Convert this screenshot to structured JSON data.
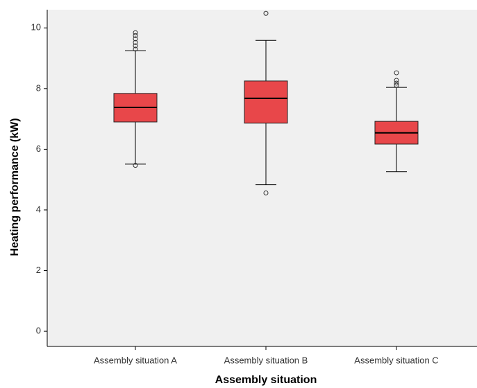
{
  "chart_data": {
    "type": "box",
    "x_label": "Assembly situation",
    "y_label": "Heating performance (kW)",
    "categories": [
      "Assembly situation A",
      "Assembly situation B",
      "Assembly situation C"
    ],
    "color": "#e8474a",
    "boxes": [
      {
        "min": 5.51,
        "q1": 6.9,
        "median": 7.38,
        "q3": 7.84,
        "max": 9.25,
        "outliers": [
          5.47,
          9.3,
          9.41,
          9.52,
          9.64,
          9.75,
          9.84
        ]
      },
      {
        "min": 4.83,
        "q1": 6.86,
        "median": 7.68,
        "q3": 8.25,
        "max": 9.59,
        "outliers": [
          4.56,
          10.48
        ]
      },
      {
        "min": 5.26,
        "q1": 6.17,
        "median": 6.54,
        "q3": 6.92,
        "max": 8.04,
        "outliers": [
          8.11,
          8.18,
          8.27,
          8.52
        ]
      }
    ],
    "ylim": [
      -0.5,
      10.6
    ],
    "yticks": [
      0,
      2,
      4,
      6,
      8,
      10
    ]
  }
}
